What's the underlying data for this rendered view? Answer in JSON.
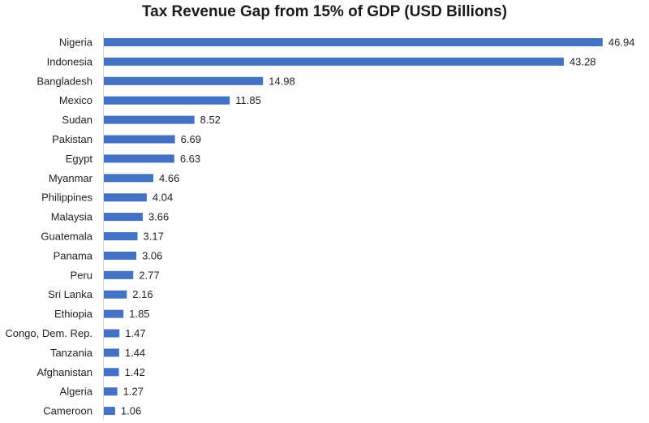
{
  "chart_data": {
    "type": "bar",
    "orientation": "horizontal",
    "title": "Tax Revenue Gap from 15% of GDP (USD Billions)",
    "xlabel": "",
    "ylabel": "",
    "xlim": [
      0,
      47.5
    ],
    "grid": false,
    "legend": "none",
    "bar_color": "#4472C4",
    "categories": [
      "Nigeria",
      "Indonesia",
      "Bangladesh",
      "Mexico",
      "Sudan",
      "Pakistan",
      "Egypt",
      "Myanmar",
      "Philippines",
      "Malaysia",
      "Guatemala",
      "Panama",
      "Peru",
      "Sri Lanka",
      "Ethiopia",
      "Congo, Dem. Rep.",
      "Tanzania",
      "Afghanistan",
      "Algeria",
      "Cameroon"
    ],
    "values": [
      46.94,
      43.28,
      14.98,
      11.85,
      8.52,
      6.69,
      6.63,
      4.66,
      4.04,
      3.66,
      3.17,
      3.06,
      2.77,
      2.16,
      1.85,
      1.47,
      1.44,
      1.42,
      1.27,
      1.06
    ],
    "value_labels": [
      "46.94",
      "43.28",
      "14.98",
      "11.85",
      "8.52",
      "6.69",
      "6.63",
      "4.66",
      "4.04",
      "3.66",
      "3.17",
      "3.06",
      "2.77",
      "2.16",
      "1.85",
      "1.47",
      "1.44",
      "1.42",
      "1.27",
      "1.06"
    ]
  }
}
